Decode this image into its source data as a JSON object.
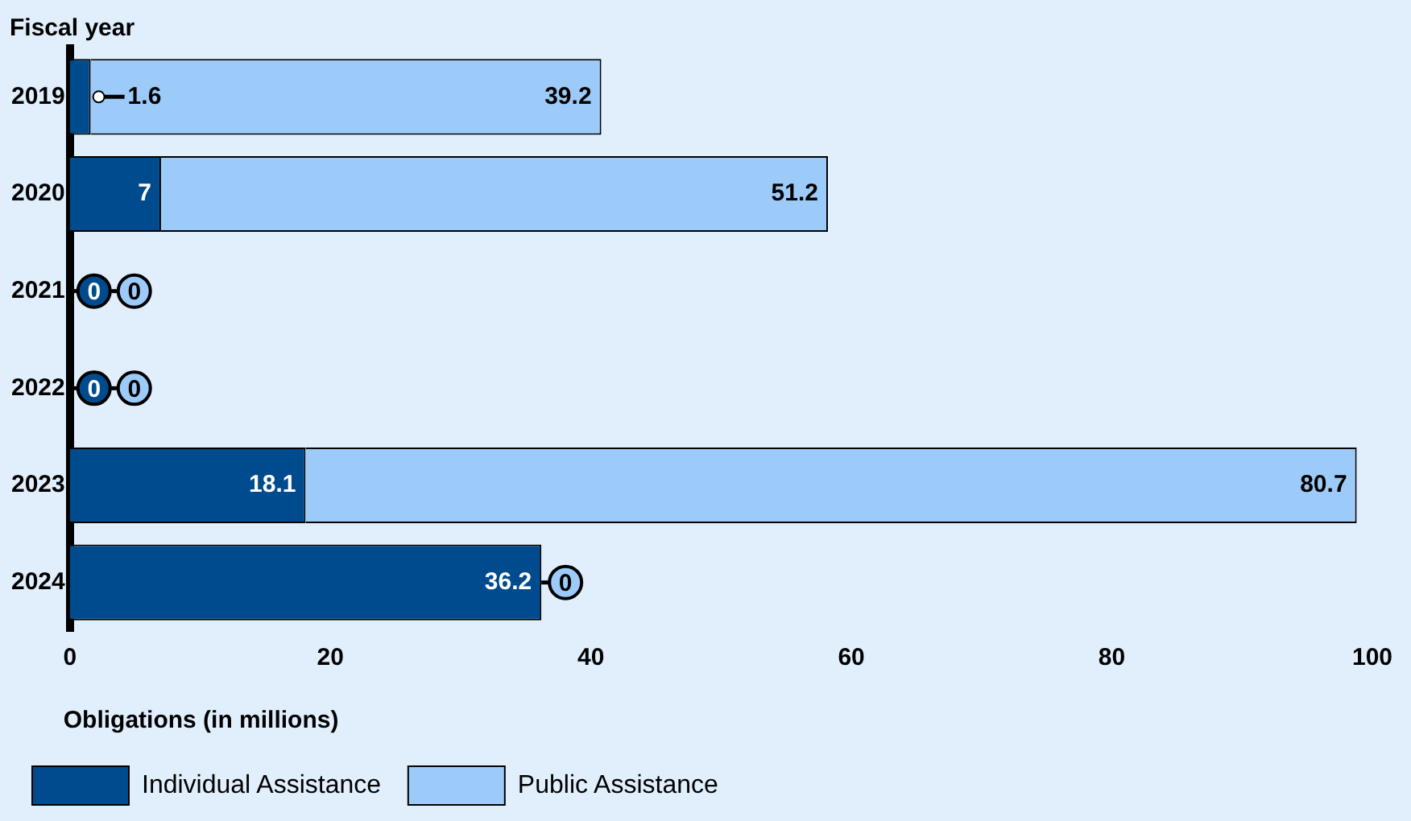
{
  "chart_data": {
    "type": "bar",
    "orientation": "horizontal",
    "stacked": true,
    "ylabel": "Fiscal year",
    "xlabel": "Obligations (in millions)",
    "categories": [
      "2019",
      "2020",
      "2021",
      "2022",
      "2023",
      "2024"
    ],
    "series": [
      {
        "name": "Individual Assistance",
        "color": "#004b8d",
        "values": [
          1.6,
          7,
          0,
          0,
          18.1,
          36.2
        ]
      },
      {
        "name": "Public Assistance",
        "color": "#9dcbf9",
        "values": [
          39.2,
          51.2,
          0,
          0,
          80.7,
          0
        ]
      }
    ],
    "xlim": [
      0,
      100
    ],
    "xticks": [
      0,
      20,
      40,
      60,
      80,
      100
    ],
    "grid": false,
    "legend": "bottom",
    "data_labels": true
  }
}
